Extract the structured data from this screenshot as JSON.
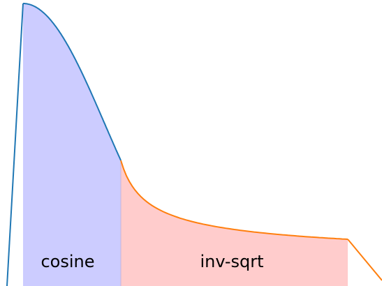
{
  "labels": [
    "cosine",
    "inv-sqrt"
  ]
}
